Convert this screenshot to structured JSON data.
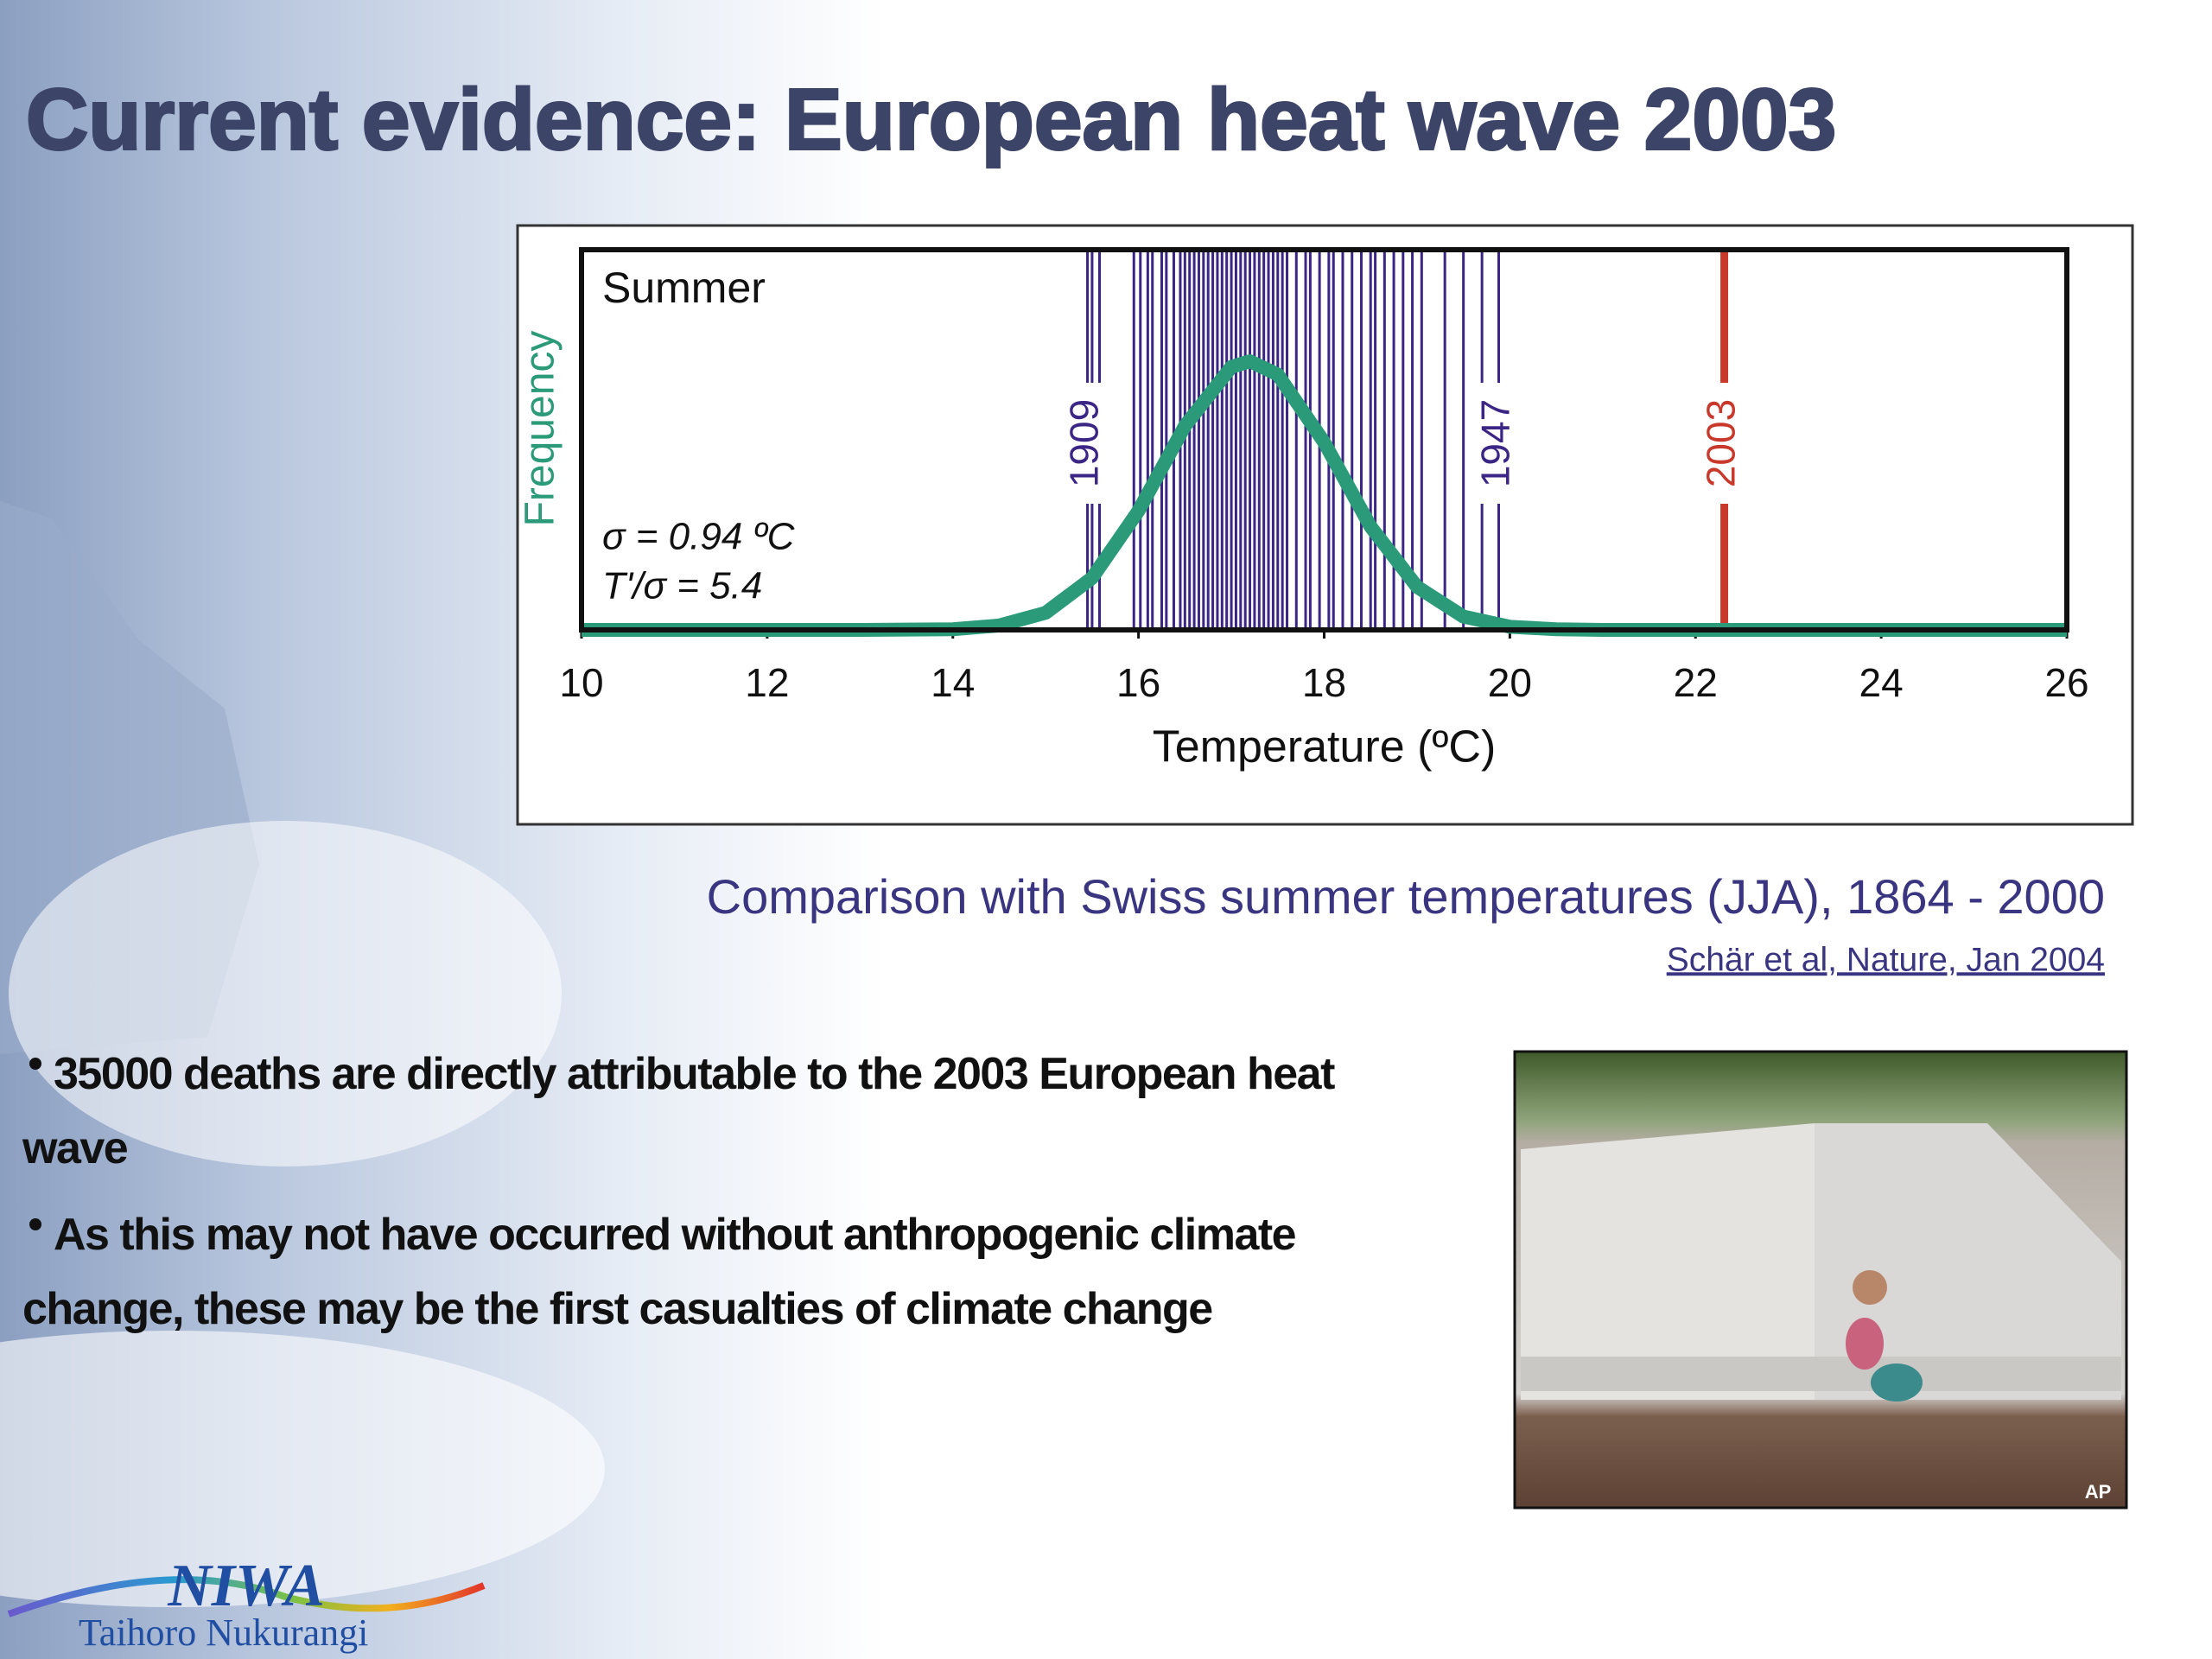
{
  "title": "Current evidence: European heat wave 2003",
  "chart_data": {
    "type": "line",
    "x_label": "Temperature (ºC)",
    "y_label": "Frequency",
    "annotations": [
      "Summer",
      "σ = 0.94 ºC",
      "T'/σ = 5.4"
    ],
    "xlim": [
      10,
      26
    ],
    "xticks": [
      10,
      12,
      14,
      16,
      18,
      20,
      22,
      24,
      26
    ],
    "ylim": [
      0,
      0.6
    ],
    "series": [
      {
        "color": "#2a9a78",
        "x": [
          10,
          12,
          13,
          14,
          14.5,
          15,
          15.5,
          16,
          16.5,
          17,
          17.2,
          17.5,
          18,
          18.5,
          19,
          19.5,
          20,
          20.5,
          21,
          22,
          24,
          26
        ],
        "values": [
          0,
          0,
          0,
          0.001,
          0.007,
          0.027,
          0.082,
          0.188,
          0.322,
          0.415,
          0.424,
          0.403,
          0.296,
          0.163,
          0.068,
          0.021,
          0.005,
          0.001,
          0,
          0,
          0,
          0
        ]
      }
    ],
    "year_lines": {
      "color": "#3b2585",
      "x": [
        15.5,
        15.58,
        15.95,
        16.02,
        16.1,
        16.15,
        16.25,
        16.3,
        16.38,
        16.45,
        16.5,
        16.55,
        16.6,
        16.65,
        16.7,
        16.75,
        16.8,
        16.85,
        16.9,
        16.95,
        17.0,
        17.05,
        17.1,
        17.15,
        17.2,
        17.25,
        17.3,
        17.35,
        17.4,
        17.45,
        17.5,
        17.55,
        17.6,
        17.7,
        17.8,
        17.85,
        17.95,
        18.05,
        18.1,
        18.2,
        18.3,
        18.4,
        18.5,
        18.55,
        18.65,
        18.75,
        18.85,
        18.95,
        19.05,
        19.3,
        19.5,
        19.7
      ]
    },
    "highlighted": [
      {
        "label": "1909",
        "value": 15.45,
        "color": "#3b2585"
      },
      {
        "label": "1947",
        "value": 19.88,
        "color": "#3b2585"
      },
      {
        "label": "2003",
        "value": 22.31,
        "color": "#c8392b"
      }
    ]
  },
  "caption": "Comparison with Swiss summer temperatures (JJA), 1864 - 2000",
  "source": "Schär et al, Nature, Jan 2004",
  "bullets": [
    "35000 deaths are directly attributable to the 2003 European heat wave",
    "As this may not have occurred without anthropogenic climate change, these may be the first casualties of climate change"
  ],
  "photo": {
    "credit": "AP"
  },
  "logo": {
    "name": "NIWA",
    "subtitle": "Taihoro Nukurangi"
  }
}
